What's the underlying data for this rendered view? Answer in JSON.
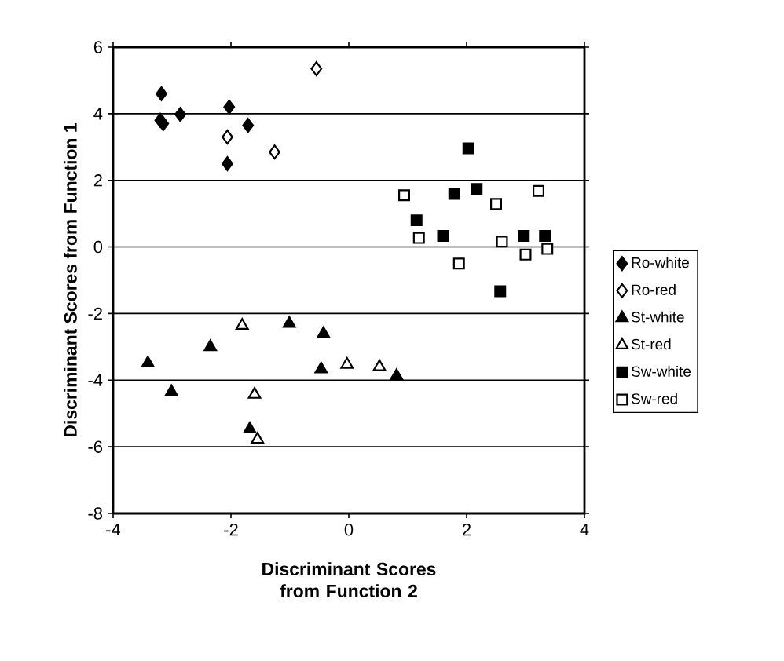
{
  "chart_data": {
    "type": "scatter",
    "xlabel": "Discriminant Scores from Function 2",
    "ylabel": "Discriminant Scores from Function 1",
    "xlim": [
      -4,
      4
    ],
    "ylim": [
      -8,
      6
    ],
    "xticks": [
      -4,
      -2,
      0,
      2,
      4
    ],
    "yticks": [
      -8,
      -6,
      -4,
      -2,
      0,
      2,
      4,
      6
    ],
    "grid": "y",
    "legend": "right",
    "series": [
      {
        "name": "Ro-white",
        "color": "#000000",
        "marker": "diamond",
        "x": [
          -3.18,
          -3.2,
          -3.15,
          -2.86,
          -2.03,
          -1.71,
          -2.06
        ],
        "values": [
          4.6,
          3.8,
          3.7,
          3.98,
          4.2,
          3.65,
          2.5
        ]
      },
      {
        "name": "Ro-red",
        "color": "#ffffff",
        "marker": "diamond",
        "x": [
          -0.55,
          -2.06,
          -1.26
        ],
        "values": [
          5.35,
          3.3,
          2.85
        ]
      },
      {
        "name": "St-white",
        "color": "#000000",
        "marker": "triangle",
        "x": [
          -3.41,
          -3.01,
          -2.35,
          -1.01,
          -0.43,
          -0.47,
          0.81,
          -1.68
        ],
        "values": [
          -3.49,
          -4.35,
          -3.0,
          -2.3,
          -2.61,
          -3.67,
          -3.87,
          -5.47
        ]
      },
      {
        "name": "St-red",
        "color": "#ffffff",
        "marker": "triangle",
        "x": [
          -1.81,
          -1.6,
          -1.55,
          -0.03,
          0.52
        ],
        "values": [
          -2.36,
          -4.43,
          -5.78,
          -3.53,
          -3.6
        ]
      },
      {
        "name": "Sw-white",
        "color": "#000000",
        "marker": "square",
        "x": [
          1.79,
          2.17,
          1.15,
          1.6,
          2.97,
          3.33,
          2.57,
          2.03
        ],
        "values": [
          1.59,
          1.74,
          0.8,
          0.33,
          0.33,
          0.33,
          -1.33,
          2.96
        ]
      },
      {
        "name": "Sw-red",
        "color": "#ffffff",
        "marker": "square",
        "x": [
          0.94,
          2.5,
          3.22,
          1.19,
          2.6,
          3.0,
          3.37,
          1.87
        ],
        "values": [
          1.55,
          1.29,
          1.68,
          0.27,
          0.16,
          -0.23,
          -0.06,
          -0.5
        ]
      }
    ]
  }
}
